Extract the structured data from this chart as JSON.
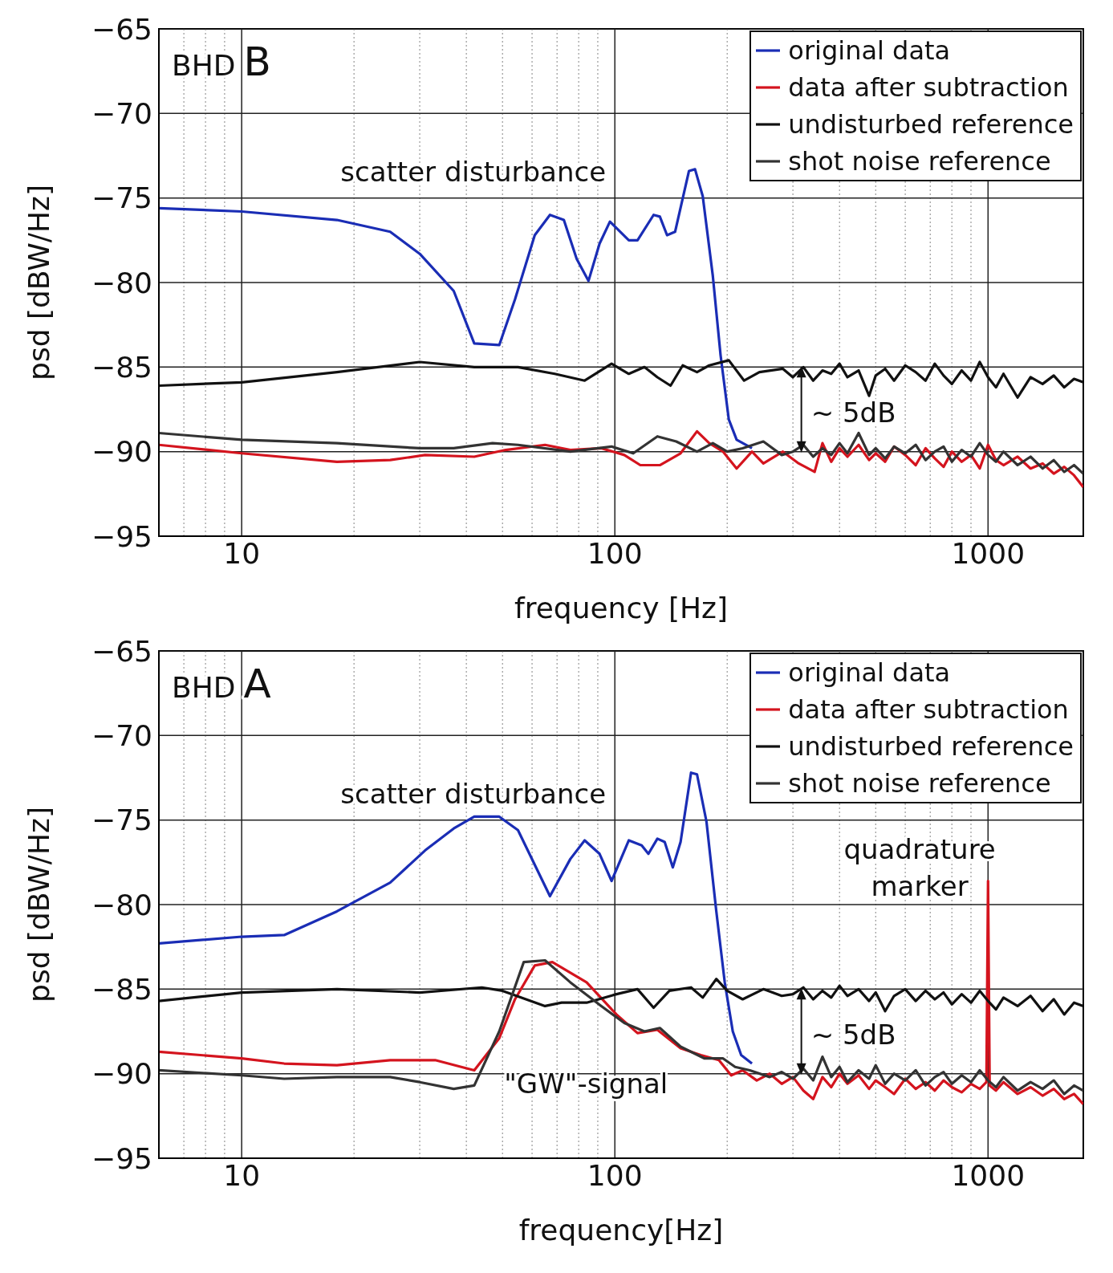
{
  "chart_data": [
    {
      "type": "line",
      "xlabel": "frequency [Hz]",
      "ylabel": "psd [dBW/Hz]",
      "log": "x",
      "grid": true,
      "legend": "top right",
      "xlim": [
        6,
        1800
      ],
      "ylim": [
        -95,
        -65
      ],
      "yticks": [
        -95,
        -90,
        -85,
        -80,
        -75,
        -70,
        -65
      ],
      "xticks": [
        {
          "value": 7,
          "label": null
        },
        {
          "value": 8,
          "label": null
        },
        {
          "value": 9,
          "label": null
        },
        10,
        {
          "value": 20,
          "label": null
        },
        {
          "value": 30,
          "label": null
        },
        {
          "value": 40,
          "label": null
        },
        {
          "value": 50,
          "label": null
        },
        {
          "value": 60,
          "label": null
        },
        {
          "value": 70,
          "label": null
        },
        {
          "value": 80,
          "label": null
        },
        {
          "value": 90,
          "label": null
        },
        100,
        {
          "value": 200,
          "label": null
        },
        {
          "value": 300,
          "label": null
        },
        {
          "value": 400,
          "label": null
        },
        {
          "value": 500,
          "label": null
        },
        {
          "value": 600,
          "label": null
        },
        {
          "value": 700,
          "label": null
        },
        {
          "value": 800,
          "label": null
        },
        {
          "value": 900,
          "label": null
        },
        1000
      ],
      "annotations": [
        "BHD B",
        "scatter disturbance",
        "~ 5dB"
      ],
      "series": [
        {
          "name": "original data",
          "color": "#1a2db5",
          "x": [
            6,
            10,
            18,
            25,
            30,
            37,
            42,
            49,
            54,
            61,
            67,
            73,
            79,
            85,
            91,
            97,
            109,
            115,
            127,
            132,
            138,
            145,
            158,
            164,
            172,
            183,
            192,
            202,
            212,
            233
          ],
          "values": [
            -75.6,
            -75.8,
            -76.3,
            -77.0,
            -78.3,
            -80.5,
            -83.6,
            -83.7,
            -81.0,
            -77.2,
            -76.0,
            -76.3,
            -78.6,
            -79.9,
            -77.7,
            -76.4,
            -77.5,
            -77.5,
            -76.0,
            -76.1,
            -77.2,
            -77.0,
            -73.4,
            -73.3,
            -74.9,
            -79.6,
            -84.3,
            -88.1,
            -89.3,
            -89.8
          ]
        },
        {
          "name": "data after subtraction",
          "color": "#d4141e",
          "x": [
            6,
            10,
            18,
            25,
            31,
            42,
            51,
            65,
            76,
            92,
            106,
            117,
            132,
            150,
            166,
            179,
            195,
            212,
            233,
            250,
            282,
            311,
            343,
            360,
            380,
            400,
            420,
            450,
            480,
            500,
            530,
            560,
            600,
            640,
            680,
            720,
            760,
            800,
            850,
            900,
            950,
            1000,
            1050,
            1100,
            1200,
            1300,
            1400,
            1500,
            1600,
            1700,
            1800
          ],
          "values": [
            -89.6,
            -90.1,
            -90.6,
            -90.5,
            -90.2,
            -90.3,
            -89.9,
            -89.6,
            -89.9,
            -89.8,
            -90.2,
            -90.8,
            -90.8,
            -90.1,
            -88.8,
            -89.5,
            -90.0,
            -91.0,
            -90.0,
            -90.7,
            -90.0,
            -90.7,
            -91.2,
            -89.5,
            -90.6,
            -89.8,
            -90.3,
            -89.6,
            -90.5,
            -90.1,
            -90.6,
            -89.7,
            -90.2,
            -90.8,
            -89.8,
            -90.4,
            -90.9,
            -90.0,
            -90.6,
            -90.2,
            -91.0,
            -89.6,
            -90.5,
            -90.8,
            -90.3,
            -91.0,
            -90.7,
            -91.3,
            -90.9,
            -91.4,
            -92.1
          ]
        },
        {
          "name": "undisturbed reference",
          "color": "#111111",
          "x": [
            6,
            10,
            18,
            30,
            42,
            55,
            69,
            83,
            98,
            109,
            120,
            130,
            141,
            152,
            166,
            179,
            202,
            222,
            244,
            282,
            300,
            320,
            340,
            360,
            380,
            400,
            420,
            450,
            480,
            500,
            530,
            560,
            600,
            640,
            680,
            720,
            760,
            800,
            850,
            900,
            950,
            1000,
            1050,
            1100,
            1200,
            1300,
            1400,
            1500,
            1600,
            1700,
            1800
          ],
          "values": [
            -86.1,
            -85.9,
            -85.3,
            -84.7,
            -85.0,
            -85.0,
            -85.4,
            -85.8,
            -84.8,
            -85.4,
            -85.0,
            -85.6,
            -86.1,
            -84.9,
            -85.3,
            -84.9,
            -84.6,
            -85.8,
            -85.3,
            -85.1,
            -85.6,
            -85.0,
            -85.8,
            -85.2,
            -85.4,
            -84.8,
            -85.6,
            -85.2,
            -86.7,
            -85.5,
            -85.1,
            -85.8,
            -84.9,
            -85.3,
            -85.8,
            -84.8,
            -85.5,
            -86.0,
            -85.2,
            -85.8,
            -84.7,
            -85.6,
            -86.2,
            -85.4,
            -86.8,
            -85.6,
            -86.0,
            -85.5,
            -86.2,
            -85.7,
            -85.9
          ]
        },
        {
          "name": "shot noise reference",
          "color": "#333333",
          "x": [
            6,
            10,
            18,
            30,
            37,
            47,
            55,
            76,
            98,
            112,
            130,
            146,
            166,
            183,
            200,
            220,
            250,
            280,
            300,
            320,
            340,
            360,
            380,
            400,
            420,
            450,
            480,
            500,
            530,
            560,
            600,
            640,
            680,
            720,
            760,
            800,
            850,
            900,
            950,
            1000,
            1050,
            1100,
            1200,
            1300,
            1400,
            1500,
            1600,
            1700,
            1800
          ],
          "values": [
            -88.9,
            -89.3,
            -89.5,
            -89.8,
            -89.8,
            -89.5,
            -89.6,
            -90.0,
            -89.7,
            -90.1,
            -89.1,
            -89.4,
            -90.0,
            -89.5,
            -90.0,
            -89.8,
            -89.4,
            -90.2,
            -90.0,
            -89.6,
            -90.3,
            -89.8,
            -90.2,
            -89.5,
            -90.1,
            -88.9,
            -90.2,
            -89.8,
            -90.4,
            -89.7,
            -90.1,
            -89.6,
            -90.5,
            -90.0,
            -89.7,
            -90.6,
            -89.9,
            -90.3,
            -89.5,
            -90.2,
            -90.6,
            -90.0,
            -90.8,
            -90.3,
            -91.0,
            -90.5,
            -91.2,
            -90.8,
            -91.3
          ]
        }
      ]
    },
    {
      "type": "line",
      "xlabel": "frequency[Hz]",
      "ylabel": "psd [dBW/Hz]",
      "log": "x",
      "grid": true,
      "legend": "top right",
      "xlim": [
        6,
        1800
      ],
      "ylim": [
        -95,
        -65
      ],
      "yticks": [
        -95,
        -90,
        -85,
        -80,
        -75,
        -70,
        -65
      ],
      "xticks": [
        {
          "value": 7,
          "label": null
        },
        {
          "value": 8,
          "label": null
        },
        {
          "value": 9,
          "label": null
        },
        10,
        {
          "value": 20,
          "label": null
        },
        {
          "value": 30,
          "label": null
        },
        {
          "value": 40,
          "label": null
        },
        {
          "value": 50,
          "label": null
        },
        {
          "value": 60,
          "label": null
        },
        {
          "value": 70,
          "label": null
        },
        {
          "value": 80,
          "label": null
        },
        {
          "value": 90,
          "label": null
        },
        100,
        {
          "value": 200,
          "label": null
        },
        {
          "value": 300,
          "label": null
        },
        {
          "value": 400,
          "label": null
        },
        {
          "value": 500,
          "label": null
        },
        {
          "value": 600,
          "label": null
        },
        {
          "value": 700,
          "label": null
        },
        {
          "value": 800,
          "label": null
        },
        {
          "value": 900,
          "label": null
        },
        1000
      ],
      "annotations": [
        "BHD A",
        "scatter disturbance",
        "~ 5dB",
        "quadrature marker",
        "\"GW\"-signal"
      ],
      "series": [
        {
          "name": "original data",
          "color": "#1a2db5",
          "x": [
            6,
            10,
            13,
            18,
            25,
            31,
            37,
            42,
            49,
            55,
            67,
            76,
            83,
            91,
            98,
            109,
            118,
            123,
            130,
            136,
            143,
            150,
            160,
            166,
            176,
            187,
            197,
            207,
            218,
            233
          ],
          "values": [
            -82.3,
            -81.9,
            -81.8,
            -80.4,
            -78.7,
            -76.8,
            -75.5,
            -74.8,
            -74.8,
            -75.6,
            -79.5,
            -77.3,
            -76.2,
            -77.0,
            -78.6,
            -76.2,
            -76.5,
            -77.0,
            -76.1,
            -76.3,
            -77.8,
            -76.3,
            -72.2,
            -72.3,
            -75.1,
            -80.4,
            -84.6,
            -87.5,
            -88.9,
            -89.4
          ]
        },
        {
          "name": "data after subtraction",
          "color": "#d4141e",
          "x": [
            6,
            10,
            13,
            18,
            25,
            33,
            42,
            49,
            54,
            61,
            68,
            84,
            101,
            115,
            130,
            150,
            170,
            190,
            205,
            220,
            240,
            260,
            280,
            300,
            320,
            340,
            360,
            380,
            400,
            420,
            450,
            480,
            500,
            530,
            560,
            600,
            640,
            680,
            720,
            760,
            800,
            850,
            900,
            950,
            990,
            1000,
            1010,
            1050,
            1100,
            1200,
            1300,
            1400,
            1500,
            1600,
            1700,
            1800
          ],
          "values": [
            -88.7,
            -89.1,
            -89.4,
            -89.5,
            -89.2,
            -89.2,
            -89.8,
            -87.9,
            -85.6,
            -83.6,
            -83.4,
            -84.6,
            -86.5,
            -87.6,
            -87.4,
            -88.5,
            -88.9,
            -89.2,
            -90.1,
            -89.8,
            -90.4,
            -90.0,
            -90.6,
            -90.2,
            -91.0,
            -91.5,
            -90.2,
            -90.8,
            -90.0,
            -90.6,
            -90.1,
            -90.9,
            -90.4,
            -90.8,
            -91.2,
            -90.3,
            -90.9,
            -90.5,
            -91.0,
            -90.4,
            -90.8,
            -91.1,
            -90.6,
            -90.9,
            -90.5,
            -78.6,
            -90.7,
            -91.0,
            -90.5,
            -91.2,
            -90.8,
            -91.3,
            -90.9,
            -91.5,
            -91.2,
            -91.8
          ]
        },
        {
          "name": "undisturbed reference",
          "color": "#111111",
          "x": [
            6,
            10,
            18,
            30,
            44,
            50,
            65,
            72,
            84,
            101,
            115,
            127,
            140,
            160,
            172,
            187,
            200,
            220,
            250,
            280,
            300,
            320,
            340,
            360,
            380,
            400,
            420,
            450,
            480,
            500,
            530,
            560,
            600,
            640,
            680,
            720,
            760,
            800,
            850,
            900,
            950,
            1000,
            1050,
            1100,
            1200,
            1300,
            1400,
            1500,
            1600,
            1700,
            1800
          ],
          "values": [
            -85.7,
            -85.2,
            -85.0,
            -85.2,
            -84.9,
            -85.1,
            -86.0,
            -85.8,
            -85.8,
            -85.3,
            -85.0,
            -86.1,
            -85.1,
            -84.9,
            -85.5,
            -84.4,
            -85.1,
            -85.6,
            -85.0,
            -85.4,
            -85.3,
            -84.9,
            -85.6,
            -85.1,
            -85.5,
            -84.8,
            -85.4,
            -85.0,
            -85.7,
            -85.2,
            -86.3,
            -85.4,
            -85.0,
            -85.7,
            -85.1,
            -85.6,
            -85.2,
            -85.9,
            -85.3,
            -85.8,
            -85.1,
            -85.7,
            -86.2,
            -85.5,
            -86.0,
            -85.4,
            -86.3,
            -85.6,
            -86.5,
            -85.8,
            -86.0
          ]
        },
        {
          "name": "shot noise reference",
          "color": "#333333",
          "x": [
            6,
            10,
            13,
            18,
            25,
            30,
            37,
            42,
            49,
            57,
            65,
            76,
            92,
            106,
            120,
            132,
            150,
            174,
            195,
            210,
            230,
            260,
            280,
            300,
            320,
            340,
            360,
            380,
            400,
            420,
            450,
            480,
            500,
            530,
            560,
            600,
            640,
            680,
            720,
            760,
            800,
            850,
            900,
            950,
            1000,
            1050,
            1100,
            1200,
            1300,
            1400,
            1500,
            1600,
            1700,
            1800
          ],
          "values": [
            -89.8,
            -90.1,
            -90.3,
            -90.2,
            -90.2,
            -90.5,
            -90.9,
            -90.7,
            -87.5,
            -83.4,
            -83.3,
            -84.6,
            -86.0,
            -87.0,
            -87.5,
            -87.3,
            -88.4,
            -89.1,
            -89.1,
            -89.6,
            -89.8,
            -90.2,
            -89.9,
            -90.3,
            -89.7,
            -90.4,
            -89.0,
            -90.2,
            -89.6,
            -90.5,
            -89.8,
            -90.3,
            -89.5,
            -90.6,
            -90.0,
            -90.4,
            -89.8,
            -90.7,
            -90.2,
            -89.9,
            -90.6,
            -90.1,
            -90.5,
            -89.8,
            -90.4,
            -90.8,
            -90.2,
            -91.0,
            -90.5,
            -90.9,
            -90.4,
            -91.2,
            -90.7,
            -91.0
          ]
        }
      ]
    }
  ]
}
